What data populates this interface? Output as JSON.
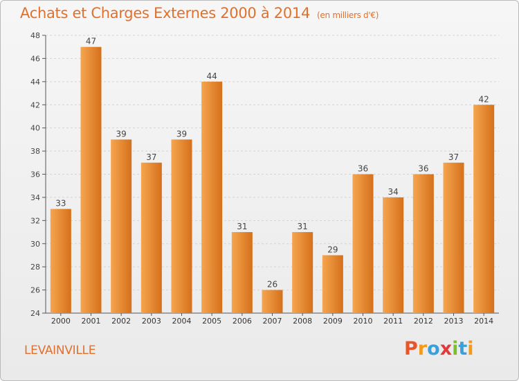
{
  "title": "Achats et Charges Externes 2000 à 2014",
  "subtitle": "(en milliers d'€)",
  "city": "LEVAINVILLE",
  "logo": {
    "letters": [
      "P",
      "r",
      "o",
      "x",
      "i",
      "t",
      "i"
    ],
    "colors": [
      "#e8552a",
      "#f29a1a",
      "#3aa0dc",
      "#e23a3a",
      "#7bbf2a",
      "#3aa0dc",
      "#f29a1a"
    ]
  },
  "colors": {
    "bar_light": "#f6a54f",
    "bar_dark": "#d5701b",
    "title": "#e2702a"
  },
  "chart_data": {
    "type": "bar",
    "categories": [
      "2000",
      "2001",
      "2002",
      "2003",
      "2004",
      "2005",
      "2006",
      "2007",
      "2008",
      "2009",
      "2010",
      "2011",
      "2012",
      "2013",
      "2014"
    ],
    "values": [
      33,
      47,
      39,
      37,
      39,
      44,
      31,
      26,
      31,
      29,
      36,
      34,
      36,
      37,
      42
    ],
    "ylim": [
      24,
      48
    ],
    "yticks": [
      24,
      26,
      28,
      30,
      32,
      34,
      36,
      38,
      40,
      42,
      44,
      46,
      48
    ],
    "grid": true
  }
}
